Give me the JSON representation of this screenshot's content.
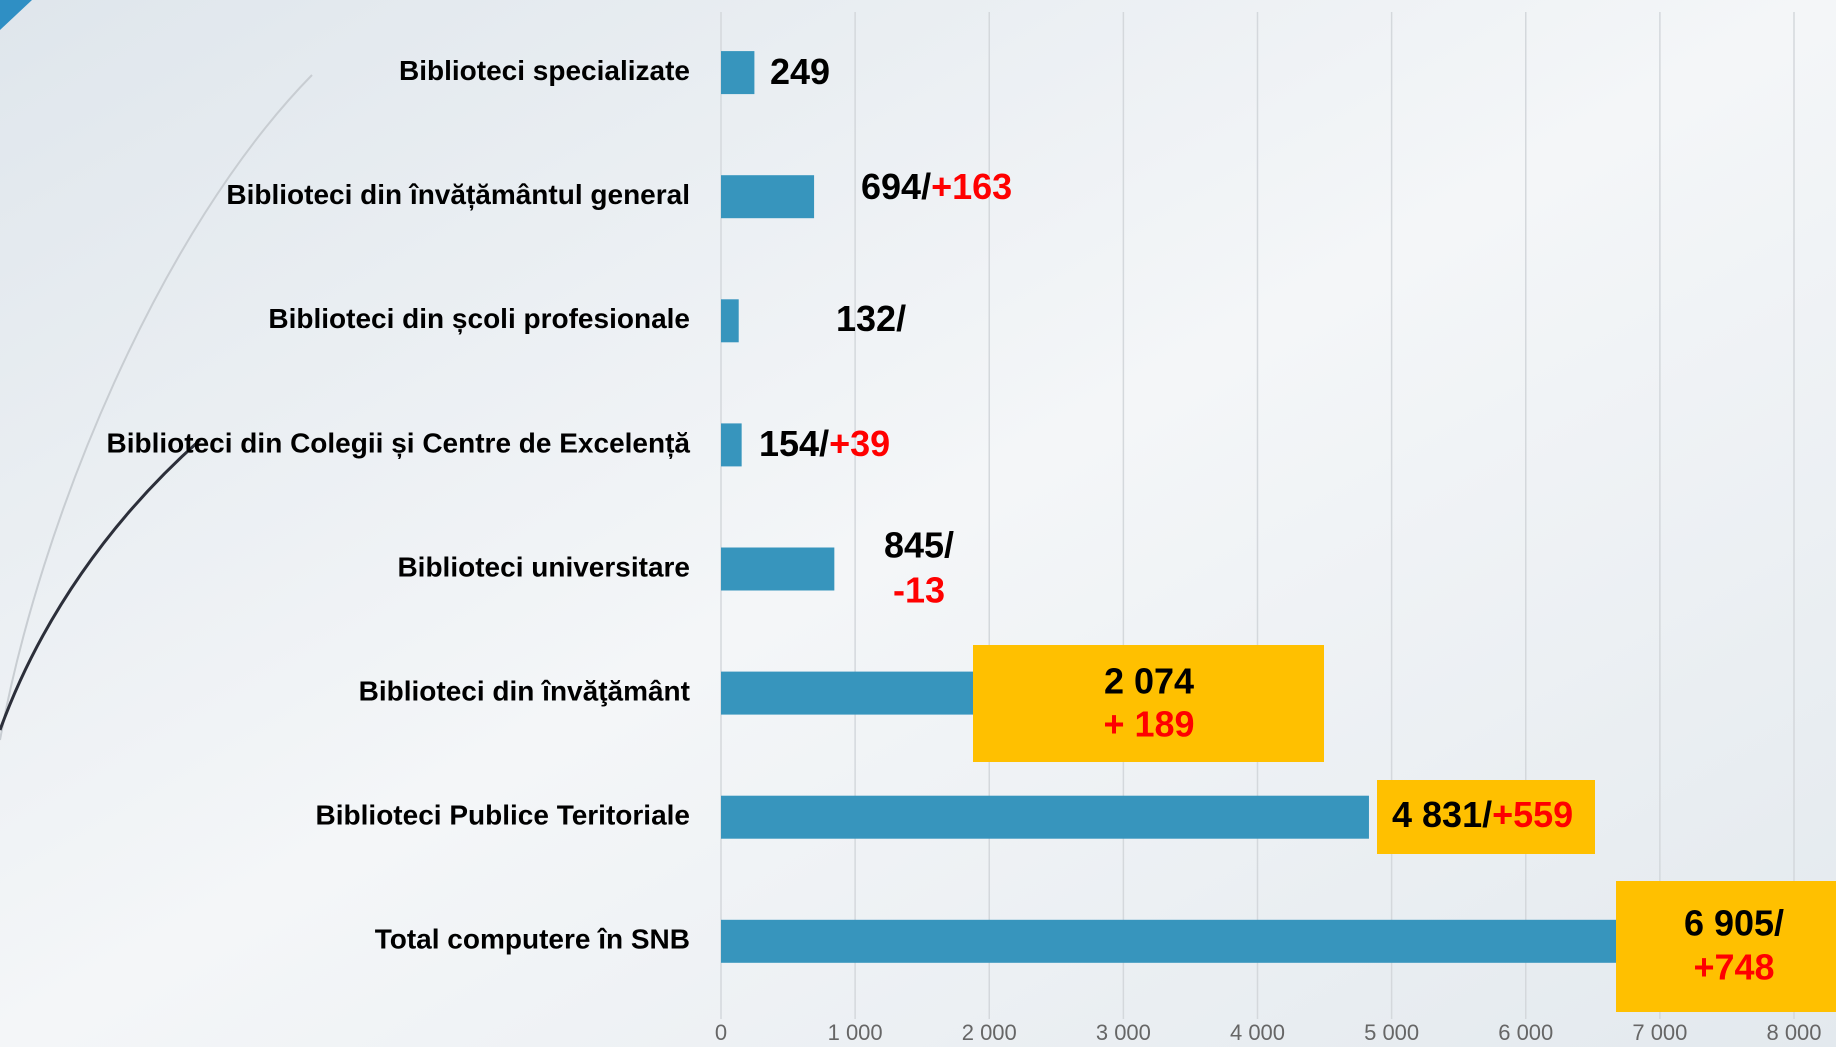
{
  "chart_data": {
    "type": "bar",
    "orientation": "horizontal",
    "categories": [
      "Biblioteci specializate",
      "Biblioteci din învățământul general",
      "Biblioteci din școli profesionale",
      "Biblioteci din Colegii și Centre de Excelență",
      "Biblioteci universitare",
      "Biblioteci din învăţământ",
      "Biblioteci Publice Teritoriale",
      "Total computere în SNB"
    ],
    "values": [
      249,
      694,
      132,
      154,
      845,
      2074,
      4831,
      6905
    ],
    "value_labels": [
      "249",
      "694/",
      "132/",
      "154/",
      "845/",
      "2 074",
      "4 831/",
      "6 905/"
    ],
    "changes": [
      null,
      "+163",
      null,
      "+39",
      "-13",
      "+ 189",
      "+559",
      "+748"
    ],
    "color": "#3795bd",
    "label_box_color": "#ffc000",
    "change_color": "#ff0000",
    "xlim": [
      0,
      8000
    ],
    "xticks": [
      0,
      {
        "value": 1000,
        "label": "1 000"
      },
      {
        "value": 2000,
        "label": "2 000"
      },
      {
        "value": 3000,
        "label": "3 000"
      },
      {
        "value": 4000,
        "label": "4 000"
      },
      {
        "value": 5000,
        "label": "5 000"
      },
      {
        "value": 6000,
        "label": "6 000"
      },
      {
        "value": 7000,
        "label": "7 000"
      },
      {
        "value": 8000,
        "label": "8 000"
      }
    ],
    "grid": true
  }
}
